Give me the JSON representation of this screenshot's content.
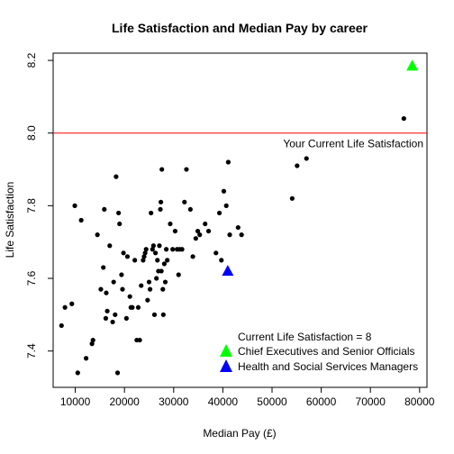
{
  "chart_data": {
    "type": "scatter",
    "title": "Life Satisfaction and Median Pay by career",
    "xlabel": "Median Pay (£)",
    "ylabel": "Life Satisfaction",
    "xlim": [
      5500,
      81500
    ],
    "ylim": [
      7.3,
      8.22
    ],
    "x_ticks": [
      10000,
      20000,
      30000,
      40000,
      50000,
      60000,
      70000,
      80000
    ],
    "y_ticks": [
      7.4,
      7.6,
      7.8,
      8.0,
      8.2
    ],
    "grid": false,
    "reference_line": {
      "y": 8.0,
      "color": "#ff0000",
      "label": "Your Current Life Satisfaction"
    },
    "annotation_text": "Current Life Satisfaction =  8",
    "legend_position": "bottom-right",
    "legend": [
      {
        "label": "Chief Executives and Senior Officials",
        "color": "#00ff00",
        "shape": "triangle"
      },
      {
        "label": "Health and Social Services Managers",
        "color": "#0000ff",
        "shape": "triangle"
      }
    ],
    "highlighted_points": [
      {
        "label": "Chief Executives and Senior Officials",
        "x": 78500,
        "y": 8.185,
        "color": "#00ff00"
      },
      {
        "label": "Health and Social Services Managers",
        "x": 41000,
        "y": 7.62,
        "color": "#0000ff"
      }
    ],
    "series": [
      {
        "color": "#000000",
        "points": [
          [
            7200,
            7.47
          ],
          [
            7900,
            7.52
          ],
          [
            9300,
            7.53
          ],
          [
            9900,
            7.8
          ],
          [
            10500,
            7.34
          ],
          [
            11200,
            7.76
          ],
          [
            12200,
            7.38
          ],
          [
            13400,
            7.42
          ],
          [
            13600,
            7.43
          ],
          [
            14500,
            7.72
          ],
          [
            15200,
            7.57
          ],
          [
            15700,
            7.63
          ],
          [
            15900,
            7.79
          ],
          [
            16200,
            7.49
          ],
          [
            16300,
            7.56
          ],
          [
            16500,
            7.51
          ],
          [
            17000,
            7.69
          ],
          [
            17600,
            7.48
          ],
          [
            17800,
            7.59
          ],
          [
            18100,
            7.5
          ],
          [
            18300,
            7.88
          ],
          [
            18600,
            7.34
          ],
          [
            18800,
            7.78
          ],
          [
            19000,
            7.75
          ],
          [
            19400,
            7.61
          ],
          [
            19600,
            7.57
          ],
          [
            19800,
            7.67
          ],
          [
            20400,
            7.49
          ],
          [
            20600,
            7.66
          ],
          [
            21100,
            7.55
          ],
          [
            21300,
            7.52
          ],
          [
            21600,
            7.52
          ],
          [
            22100,
            7.65
          ],
          [
            22500,
            7.43
          ],
          [
            22800,
            7.52
          ],
          [
            23100,
            7.43
          ],
          [
            23400,
            7.58
          ],
          [
            23800,
            7.65
          ],
          [
            24000,
            7.66
          ],
          [
            24200,
            7.67
          ],
          [
            24400,
            7.68
          ],
          [
            24700,
            7.54
          ],
          [
            25000,
            7.59
          ],
          [
            25200,
            7.57
          ],
          [
            25400,
            7.78
          ],
          [
            25700,
            7.68
          ],
          [
            25900,
            7.69
          ],
          [
            26100,
            7.5
          ],
          [
            26300,
            7.67
          ],
          [
            26500,
            7.6
          ],
          [
            26700,
            7.65
          ],
          [
            26900,
            7.62
          ],
          [
            27100,
            7.69
          ],
          [
            27300,
            7.79
          ],
          [
            27400,
            7.81
          ],
          [
            27500,
            7.62
          ],
          [
            27600,
            7.9
          ],
          [
            27800,
            7.57
          ],
          [
            27900,
            7.5
          ],
          [
            28100,
            7.64
          ],
          [
            28300,
            7.59
          ],
          [
            28500,
            7.68
          ],
          [
            28700,
            7.65
          ],
          [
            29300,
            7.75
          ],
          [
            29800,
            7.68
          ],
          [
            30300,
            7.73
          ],
          [
            30700,
            7.68
          ],
          [
            31000,
            7.61
          ],
          [
            31200,
            7.68
          ],
          [
            31700,
            7.68
          ],
          [
            32200,
            7.81
          ],
          [
            32600,
            7.9
          ],
          [
            33400,
            7.79
          ],
          [
            33900,
            7.66
          ],
          [
            34500,
            7.71
          ],
          [
            34900,
            7.73
          ],
          [
            35300,
            7.72
          ],
          [
            36400,
            7.75
          ],
          [
            37100,
            7.73
          ],
          [
            38600,
            7.67
          ],
          [
            39300,
            7.78
          ],
          [
            39700,
            7.65
          ],
          [
            40200,
            7.84
          ],
          [
            40700,
            7.8
          ],
          [
            41100,
            7.92
          ],
          [
            41400,
            7.72
          ],
          [
            43100,
            7.74
          ],
          [
            43800,
            7.72
          ],
          [
            54100,
            7.82
          ],
          [
            55100,
            7.91
          ],
          [
            57000,
            7.93
          ],
          [
            76800,
            8.04
          ]
        ]
      }
    ]
  }
}
